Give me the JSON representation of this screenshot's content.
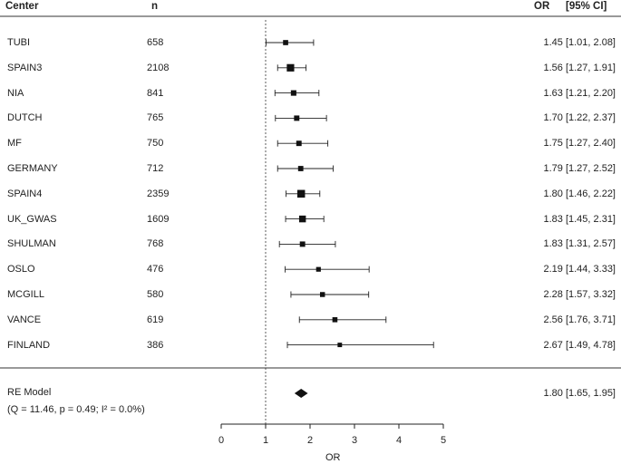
{
  "header": {
    "center_label": "Center",
    "n_label": "n",
    "or_label": "OR",
    "ci_label": "[95% CI]"
  },
  "chart_data": {
    "type": "forest",
    "xlabel": "OR",
    "xlim": [
      0,
      5
    ],
    "xticks": [
      0,
      1,
      2,
      3,
      4,
      5
    ],
    "reference_line": 1,
    "studies": [
      {
        "center": "TUBI",
        "n": 658,
        "or": 1.45,
        "lo": 1.01,
        "hi": 2.08,
        "label": "1.45 [1.01, 2.08]"
      },
      {
        "center": "SPAIN3",
        "n": 2108,
        "or": 1.56,
        "lo": 1.27,
        "hi": 1.91,
        "label": "1.56 [1.27, 1.91]"
      },
      {
        "center": "NIA",
        "n": 841,
        "or": 1.63,
        "lo": 1.21,
        "hi": 2.2,
        "label": "1.63 [1.21, 2.20]"
      },
      {
        "center": "DUTCH",
        "n": 765,
        "or": 1.7,
        "lo": 1.22,
        "hi": 2.37,
        "label": "1.70 [1.22, 2.37]"
      },
      {
        "center": "MF",
        "n": 750,
        "or": 1.75,
        "lo": 1.27,
        "hi": 2.4,
        "label": "1.75 [1.27, 2.40]"
      },
      {
        "center": "GERMANY",
        "n": 712,
        "or": 1.79,
        "lo": 1.27,
        "hi": 2.52,
        "label": "1.79 [1.27, 2.52]"
      },
      {
        "center": "SPAIN4",
        "n": 2359,
        "or": 1.8,
        "lo": 1.46,
        "hi": 2.22,
        "label": "1.80 [1.46, 2.22]"
      },
      {
        "center": "UK_GWAS",
        "n": 1609,
        "or": 1.83,
        "lo": 1.45,
        "hi": 2.31,
        "label": "1.83 [1.45, 2.31]"
      },
      {
        "center": "SHULMAN",
        "n": 768,
        "or": 1.83,
        "lo": 1.31,
        "hi": 2.57,
        "label": "1.83 [1.31, 2.57]"
      },
      {
        "center": "OSLO",
        "n": 476,
        "or": 2.19,
        "lo": 1.44,
        "hi": 3.33,
        "label": "2.19 [1.44, 3.33]"
      },
      {
        "center": "MCGILL",
        "n": 580,
        "or": 2.28,
        "lo": 1.57,
        "hi": 3.32,
        "label": "2.28 [1.57, 3.32]"
      },
      {
        "center": "VANCE",
        "n": 619,
        "or": 2.56,
        "lo": 1.76,
        "hi": 3.71,
        "label": "2.56 [1.76, 3.71]"
      },
      {
        "center": "FINLAND",
        "n": 386,
        "or": 2.67,
        "lo": 1.49,
        "hi": 4.78,
        "label": "2.67 [1.49, 4.78]"
      }
    ],
    "summary": {
      "label": "RE Model",
      "stats_line": "(Q = 11.46, p = 0.49; I² = 0.0%)",
      "or": 1.8,
      "lo": 1.65,
      "hi": 1.95,
      "ci_label": "1.80 [1.65, 1.95]"
    }
  }
}
